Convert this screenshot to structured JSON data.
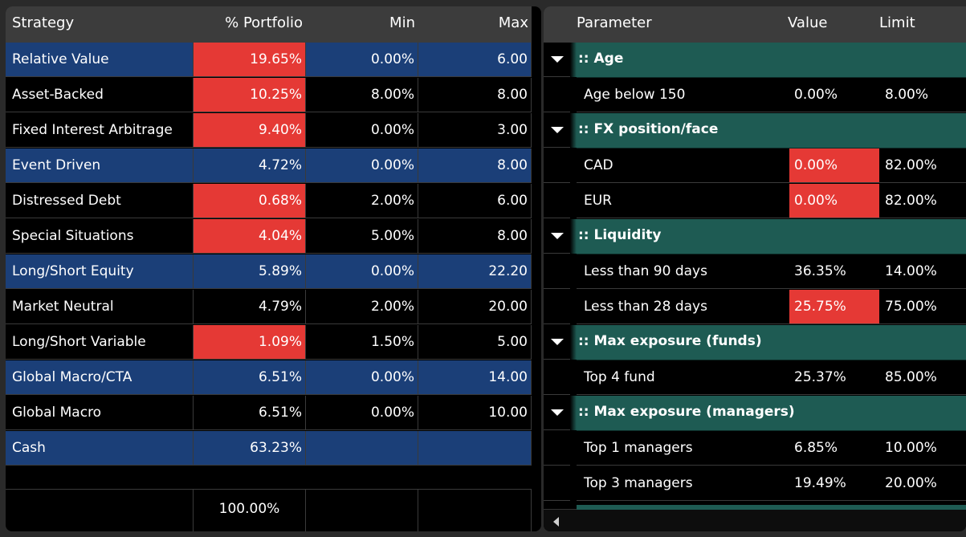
{
  "strategy_table": {
    "headers": {
      "strategy": "Strategy",
      "portfolio": "% Portfolio",
      "min": "Min",
      "max": "Max"
    },
    "rows": [
      {
        "name": "Relative Value",
        "portfolio": "19.65%",
        "min": "0.00%",
        "max": "6.00"
      },
      {
        "name": "Asset-Backed",
        "portfolio": "10.25%",
        "min": "8.00%",
        "max": "8.00"
      },
      {
        "name": "Fixed Interest Arbitrage",
        "portfolio": "9.40%",
        "min": "0.00%",
        "max": "3.00"
      },
      {
        "name": "Event Driven",
        "portfolio": "4.72%",
        "min": "0.00%",
        "max": "8.00"
      },
      {
        "name": "Distressed Debt",
        "portfolio": "0.68%",
        "min": "2.00%",
        "max": "6.00"
      },
      {
        "name": "Special Situations",
        "portfolio": "4.04%",
        "min": "5.00%",
        "max": "8.00"
      },
      {
        "name": "Long/Short Equity",
        "portfolio": "5.89%",
        "min": "0.00%",
        "max": "22.20"
      },
      {
        "name": "Market Neutral",
        "portfolio": "4.79%",
        "min": "2.00%",
        "max": "20.00"
      },
      {
        "name": "Long/Short Variable",
        "portfolio": "1.09%",
        "min": "1.50%",
        "max": "5.00"
      },
      {
        "name": "Global Macro/CTA",
        "portfolio": "6.51%",
        "min": "0.00%",
        "max": "14.00"
      },
      {
        "name": "Global Macro",
        "portfolio": "6.51%",
        "min": "0.00%",
        "max": "10.00"
      },
      {
        "name": "Cash",
        "portfolio": "63.23%",
        "min": "",
        "max": ""
      }
    ],
    "total": "100.00%"
  },
  "parameter_table": {
    "headers": {
      "parameter": "Parameter",
      "value": "Value",
      "limit": "Limit"
    },
    "groups": [
      {
        "label": ":: Age",
        "items": [
          {
            "name": "Age below 150",
            "value": "0.00%",
            "limit": "8.00%"
          }
        ]
      },
      {
        "label": ":: FX position/face",
        "items": [
          {
            "name": "CAD",
            "value": "0.00%",
            "limit": "82.00%"
          },
          {
            "name": "EUR",
            "value": "0.00%",
            "limit": "82.00%"
          }
        ]
      },
      {
        "label": ":: Liquidity",
        "items": [
          {
            "name": "Less than 90 days",
            "value": "36.35%",
            "limit": "14.00%"
          },
          {
            "name": "Less than 28 days",
            "value": "25.75%",
            "limit": "75.00%"
          }
        ]
      },
      {
        "label": ":: Max exposure (funds)",
        "items": [
          {
            "name": "Top 4 fund",
            "value": "25.37%",
            "limit": "85.00%"
          }
        ]
      },
      {
        "label": ":: Max exposure (managers)",
        "items": [
          {
            "name": "Top 1 managers",
            "value": "6.85%",
            "limit": "10.00%"
          },
          {
            "name": "Top 3 managers",
            "value": "19.49%",
            "limit": "20.00%"
          }
        ]
      }
    ]
  },
  "colors": {
    "row_blue": "#1b3f78",
    "alert_red": "#e53935",
    "group_teal": "#1e5b53",
    "header_gray": "#3c3c3c"
  },
  "icons": {
    "group_toggle": "chevron-down-icon",
    "scroll_left": "arrow-left-icon"
  }
}
